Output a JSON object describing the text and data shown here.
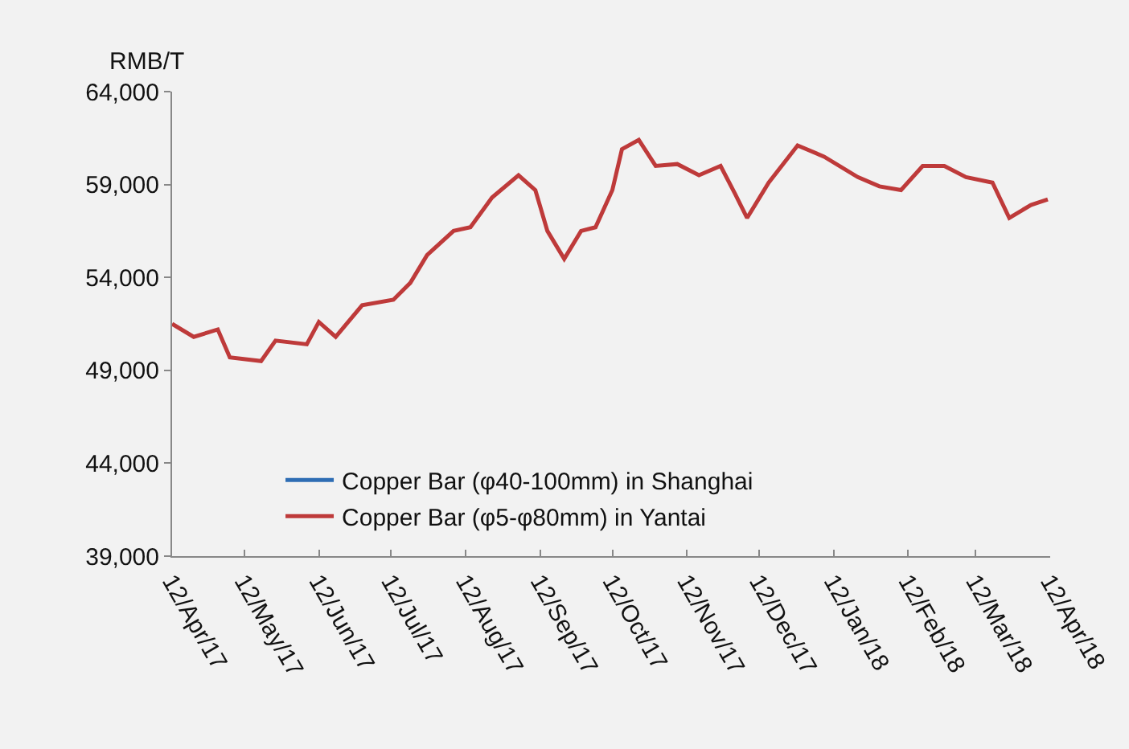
{
  "chart_data": {
    "type": "line",
    "ylabel": "RMB/T",
    "x": [
      "2017-04-12",
      "2017-04-21",
      "2017-05-01",
      "2017-05-06",
      "2017-05-19",
      "2017-05-25",
      "2017-06-07",
      "2017-06-12",
      "2017-06-19",
      "2017-06-30",
      "2017-07-13",
      "2017-07-20",
      "2017-07-27",
      "2017-08-07",
      "2017-08-14",
      "2017-08-23",
      "2017-09-03",
      "2017-09-10",
      "2017-09-15",
      "2017-09-22",
      "2017-09-29",
      "2017-10-05",
      "2017-10-12",
      "2017-10-16",
      "2017-10-23",
      "2017-10-30",
      "2017-11-08",
      "2017-11-17",
      "2017-11-26",
      "2017-12-02",
      "2017-12-07",
      "2017-12-16",
      "2017-12-28",
      "2018-01-08",
      "2018-01-22",
      "2018-01-31",
      "2018-02-09",
      "2018-02-18",
      "2018-02-27",
      "2018-03-08",
      "2018-03-19",
      "2018-03-26",
      "2018-04-04",
      "2018-04-11"
    ],
    "series": [
      {
        "name": "Copper Bar (φ40-100mm) in Shanghai",
        "color": "#2e6db4",
        "values": [
          null,
          null,
          null,
          null,
          null,
          null,
          null,
          null,
          null,
          null,
          null,
          null,
          null,
          null,
          null,
          null,
          null,
          null,
          null,
          null,
          null,
          null,
          null,
          null,
          null,
          null,
          null,
          null,
          null,
          null,
          null,
          null,
          null,
          null,
          null,
          null,
          null,
          null,
          null,
          null,
          null,
          null,
          null,
          null
        ]
      },
      {
        "name": "Copper Bar (φ5-φ80mm) in Yantai",
        "color": "#be3a3a",
        "values": [
          51500,
          50800,
          51200,
          49700,
          49500,
          50600,
          50400,
          51600,
          50800,
          52500,
          52800,
          53700,
          55200,
          56500,
          56700,
          58300,
          59500,
          58700,
          56500,
          55000,
          56500,
          56700,
          58700,
          60900,
          61400,
          60000,
          60100,
          59500,
          60000,
          58500,
          57200,
          59100,
          61100,
          60500,
          59400,
          58900,
          58700,
          60000,
          60000,
          59400,
          59100,
          57200,
          57900,
          58200
        ]
      }
    ],
    "xlim": [
      "2017-04-12",
      "2018-04-12"
    ],
    "xticks": [
      {
        "value": "2017-04-12",
        "label": "12/Apr/17"
      },
      {
        "value": "2017-05-12",
        "label": "12/May/17"
      },
      {
        "value": "2017-06-12",
        "label": "12/Jun/17"
      },
      {
        "value": "2017-07-12",
        "label": "12/Jul/17"
      },
      {
        "value": "2017-08-12",
        "label": "12/Aug/17"
      },
      {
        "value": "2017-09-12",
        "label": "12/Sep/17"
      },
      {
        "value": "2017-10-12",
        "label": "12/Oct/17"
      },
      {
        "value": "2017-11-12",
        "label": "12/Nov/17"
      },
      {
        "value": "2017-12-12",
        "label": "12/Dec/17"
      },
      {
        "value": "2018-01-12",
        "label": "12/Jan/18"
      },
      {
        "value": "2018-02-12",
        "label": "12/Feb/18"
      },
      {
        "value": "2018-03-12",
        "label": "12/Mar/18"
      },
      {
        "value": "2018-04-12",
        "label": "12/Apr/18"
      }
    ],
    "ylim": [
      39000,
      64000
    ],
    "yticks": [
      {
        "value": 39000,
        "label": "39,000"
      },
      {
        "value": 44000,
        "label": "44,000"
      },
      {
        "value": 49000,
        "label": "49,000"
      },
      {
        "value": 54000,
        "label": "54,000"
      },
      {
        "value": 59000,
        "label": "59,000"
      },
      {
        "value": 64000,
        "label": "64,000"
      }
    ],
    "grid": false,
    "legend": "bottom left",
    "marker": "none",
    "line_style": "solid"
  }
}
